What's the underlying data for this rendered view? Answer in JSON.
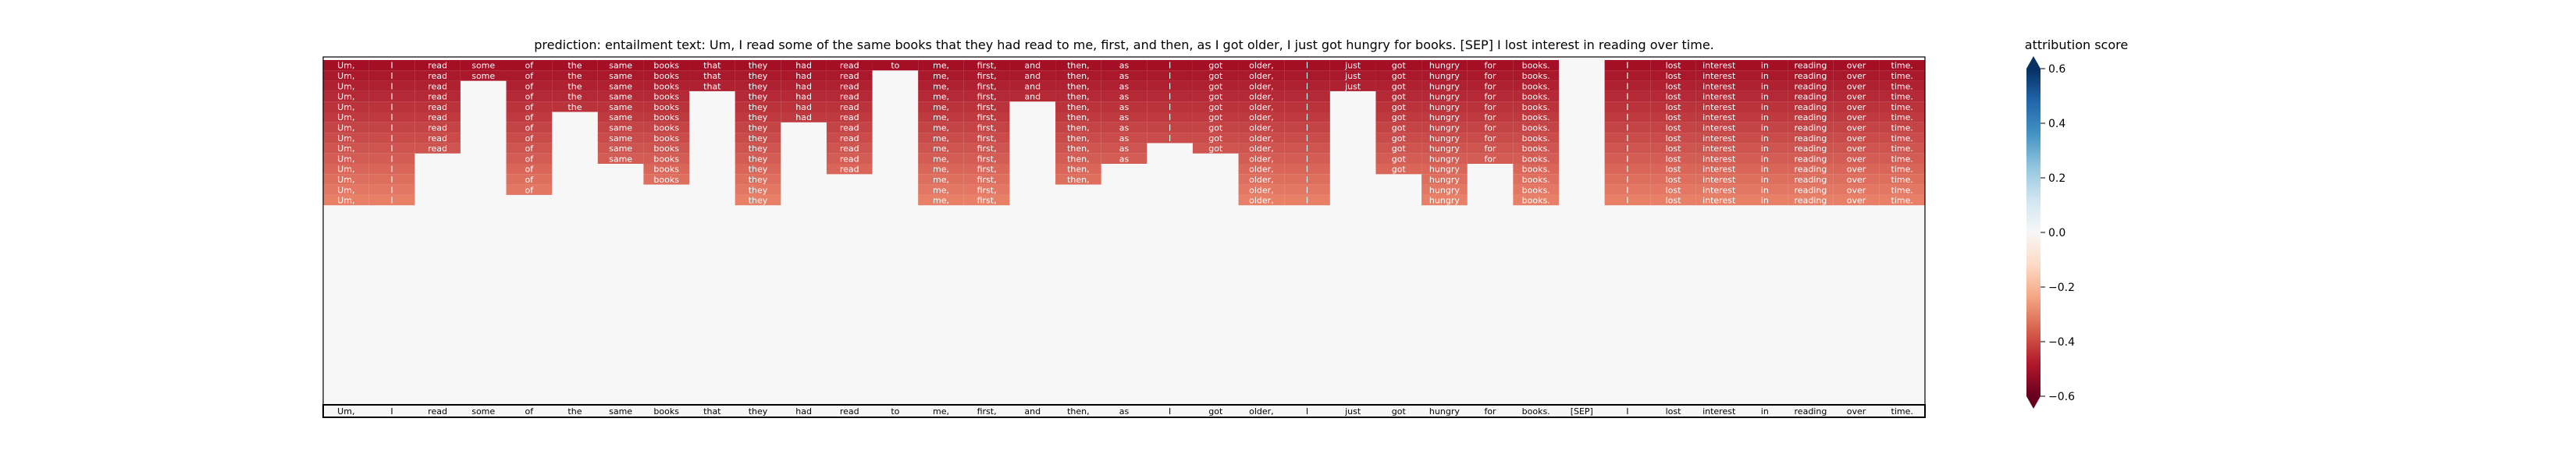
{
  "chart_data": {
    "type": "heatmap",
    "title": "prediction:  entailment      text:  Um, I read some of the same books that they had read to me, first, and then, as I got older, I just got hungry for books. [SEP] I lost interest in reading over time.",
    "tokens": [
      "Um,",
      "I",
      "read",
      "some",
      "of",
      "the",
      "same",
      "books",
      "that",
      "they",
      "had",
      "read",
      "to",
      "me,",
      "first,",
      "and",
      "then,",
      "as",
      "I",
      "got",
      "older,",
      "I",
      "just",
      "got",
      "hungry",
      "for",
      "books.",
      "[SEP]",
      "I",
      "lost",
      "interest",
      "in",
      "reading",
      "over",
      "time."
    ],
    "presence": [
      [
        1,
        1,
        1,
        1,
        1,
        1,
        1,
        1,
        1,
        1,
        1,
        1,
        1,
        1,
        1,
        1,
        1,
        1,
        1,
        1,
        1,
        1,
        1,
        1,
        1,
        1,
        1,
        0,
        1,
        1,
        1,
        1,
        1,
        1,
        1
      ],
      [
        1,
        1,
        1,
        1,
        1,
        1,
        1,
        1,
        1,
        1,
        1,
        1,
        0,
        1,
        1,
        1,
        1,
        1,
        1,
        1,
        1,
        1,
        1,
        1,
        1,
        1,
        1,
        0,
        1,
        1,
        1,
        1,
        1,
        1,
        1
      ],
      [
        1,
        1,
        1,
        0,
        1,
        1,
        1,
        1,
        1,
        1,
        1,
        1,
        0,
        1,
        1,
        1,
        1,
        1,
        1,
        1,
        1,
        1,
        1,
        1,
        1,
        1,
        1,
        0,
        1,
        1,
        1,
        1,
        1,
        1,
        1
      ],
      [
        1,
        1,
        1,
        0,
        1,
        1,
        1,
        1,
        0,
        1,
        1,
        1,
        0,
        1,
        1,
        1,
        1,
        1,
        1,
        1,
        1,
        1,
        0,
        1,
        1,
        1,
        1,
        0,
        1,
        1,
        1,
        1,
        1,
        1,
        1
      ],
      [
        1,
        1,
        1,
        0,
        1,
        1,
        1,
        1,
        0,
        1,
        1,
        1,
        0,
        1,
        1,
        0,
        1,
        1,
        1,
        1,
        1,
        1,
        0,
        1,
        1,
        1,
        1,
        0,
        1,
        1,
        1,
        1,
        1,
        1,
        1
      ],
      [
        1,
        1,
        1,
        0,
        1,
        0,
        1,
        1,
        0,
        1,
        1,
        1,
        0,
        1,
        1,
        0,
        1,
        1,
        1,
        1,
        1,
        1,
        0,
        1,
        1,
        1,
        1,
        0,
        1,
        1,
        1,
        1,
        1,
        1,
        1
      ],
      [
        1,
        1,
        1,
        0,
        1,
        0,
        1,
        1,
        0,
        1,
        0,
        1,
        0,
        1,
        1,
        0,
        1,
        1,
        1,
        1,
        1,
        1,
        0,
        1,
        1,
        1,
        1,
        0,
        1,
        1,
        1,
        1,
        1,
        1,
        1
      ],
      [
        1,
        1,
        1,
        0,
        1,
        0,
        1,
        1,
        0,
        1,
        0,
        1,
        0,
        1,
        1,
        0,
        1,
        1,
        1,
        1,
        1,
        1,
        0,
        1,
        1,
        1,
        1,
        0,
        1,
        1,
        1,
        1,
        1,
        1,
        1
      ],
      [
        1,
        1,
        1,
        0,
        1,
        0,
        1,
        1,
        0,
        1,
        0,
        1,
        0,
        1,
        1,
        0,
        1,
        1,
        0,
        1,
        1,
        1,
        0,
        1,
        1,
        1,
        1,
        0,
        1,
        1,
        1,
        1,
        1,
        1,
        1
      ],
      [
        1,
        1,
        0,
        0,
        1,
        0,
        1,
        1,
        0,
        1,
        0,
        1,
        0,
        1,
        1,
        0,
        1,
        1,
        0,
        0,
        1,
        1,
        0,
        1,
        1,
        1,
        1,
        0,
        1,
        1,
        1,
        1,
        1,
        1,
        1
      ],
      [
        1,
        1,
        0,
        0,
        1,
        0,
        0,
        1,
        0,
        1,
        0,
        1,
        0,
        1,
        1,
        0,
        1,
        0,
        0,
        0,
        1,
        1,
        0,
        1,
        1,
        0,
        1,
        0,
        1,
        1,
        1,
        1,
        1,
        1,
        1
      ],
      [
        1,
        1,
        0,
        0,
        1,
        0,
        0,
        1,
        0,
        1,
        0,
        0,
        0,
        1,
        1,
        0,
        1,
        0,
        0,
        0,
        1,
        1,
        0,
        0,
        1,
        0,
        1,
        0,
        1,
        1,
        1,
        1,
        1,
        1,
        1
      ],
      [
        1,
        1,
        0,
        0,
        1,
        0,
        0,
        0,
        0,
        1,
        0,
        0,
        0,
        1,
        1,
        0,
        0,
        0,
        0,
        0,
        1,
        1,
        0,
        0,
        1,
        0,
        1,
        0,
        1,
        1,
        1,
        1,
        1,
        1,
        1
      ],
      [
        1,
        1,
        0,
        0,
        0,
        0,
        0,
        0,
        0,
        1,
        0,
        0,
        0,
        1,
        1,
        0,
        0,
        0,
        0,
        0,
        1,
        1,
        0,
        0,
        1,
        0,
        1,
        0,
        1,
        1,
        1,
        1,
        1,
        1,
        1
      ]
    ],
    "colorbar": {
      "label": "attribution score",
      "vmin": -0.6,
      "vmax": 0.6,
      "ticks": [
        0.6,
        0.4,
        0.2,
        0.0,
        -0.2,
        -0.4,
        -0.6
      ],
      "tick_labels": [
        "0.6",
        "0.4",
        "0.2",
        "0.0",
        "−0.2",
        "−0.4",
        "−0.6"
      ]
    },
    "colors": {
      "negative": "#67001f",
      "neutral": "#f7f7f7",
      "positive": "#053061"
    }
  }
}
